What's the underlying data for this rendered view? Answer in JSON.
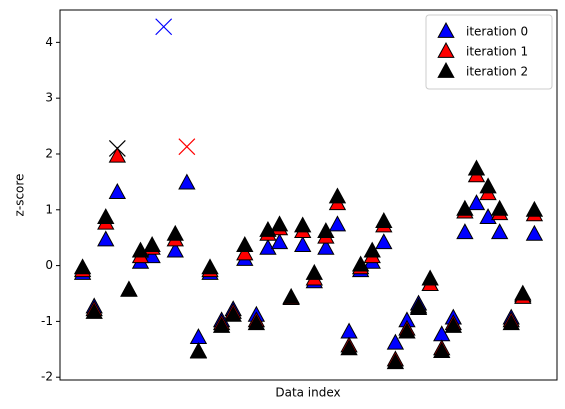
{
  "chart_data": {
    "type": "scatter",
    "xlabel": "Data index",
    "ylabel": "z-score",
    "x": [
      0,
      1,
      2,
      3,
      4,
      5,
      6,
      7,
      8,
      9,
      10,
      11,
      12,
      13,
      14,
      15,
      16,
      17,
      18,
      19,
      20,
      21,
      22,
      23,
      24,
      25,
      26,
      27,
      28,
      29,
      30,
      31,
      32,
      33,
      34,
      35,
      36,
      37,
      38,
      39
    ],
    "xlim": [
      -1.95,
      40.95
    ],
    "ylim": [
      -2.05,
      4.58
    ],
    "yticks": [
      -2,
      -1,
      0,
      1,
      2,
      3,
      4
    ],
    "legend": "upper right",
    "marker": "triangle",
    "outlier_marker": "x",
    "series": [
      {
        "name": "iteration 0",
        "color": "#0000ff",
        "values": [
          -0.15,
          -0.75,
          0.45,
          1.3,
          -0.45,
          0.05,
          0.15,
          null,
          0.25,
          1.47,
          -1.3,
          -0.15,
          -1.0,
          -0.8,
          0.1,
          -0.9,
          0.3,
          0.4,
          -0.6,
          0.35,
          -0.3,
          0.3,
          0.72,
          -1.2,
          -0.1,
          0.05,
          0.4,
          -1.4,
          -1.0,
          -0.7,
          -0.35,
          -1.25,
          -0.95,
          0.58,
          1.1,
          0.85,
          0.58,
          -0.95,
          -0.55,
          0.55
        ],
        "outliers": [
          {
            "x": 7,
            "value": 4.28
          }
        ]
      },
      {
        "name": "iteration 1",
        "color": "#ff0000",
        "values": [
          -0.1,
          -0.8,
          0.75,
          1.95,
          -0.45,
          0.15,
          0.3,
          null,
          0.45,
          null,
          -1.55,
          -0.1,
          -1.05,
          -0.85,
          0.2,
          -1.0,
          0.55,
          0.65,
          -0.6,
          0.6,
          -0.25,
          0.5,
          1.1,
          -1.45,
          -0.05,
          0.15,
          0.7,
          -1.7,
          -1.15,
          -0.75,
          -0.35,
          -1.5,
          -1.05,
          0.95,
          1.6,
          1.28,
          0.92,
          -1.0,
          -0.58,
          0.9
        ],
        "outliers": [
          {
            "x": 9,
            "value": 2.13
          }
        ]
      },
      {
        "name": "iteration 2",
        "color": "#000000",
        "values": [
          -0.05,
          -0.85,
          0.85,
          null,
          -0.45,
          0.25,
          0.35,
          null,
          0.55,
          null,
          -1.56,
          -0.05,
          -1.1,
          -0.9,
          0.35,
          -1.05,
          0.62,
          0.72,
          -0.58,
          0.7,
          -0.15,
          0.6,
          1.22,
          -1.5,
          0.0,
          0.25,
          0.78,
          -1.75,
          -1.2,
          -0.78,
          -0.25,
          -1.55,
          -1.1,
          1.0,
          1.72,
          1.4,
          1.0,
          -1.05,
          -0.52,
          0.98
        ],
        "outliers": [
          {
            "x": 3,
            "value": 2.1
          }
        ]
      }
    ]
  }
}
